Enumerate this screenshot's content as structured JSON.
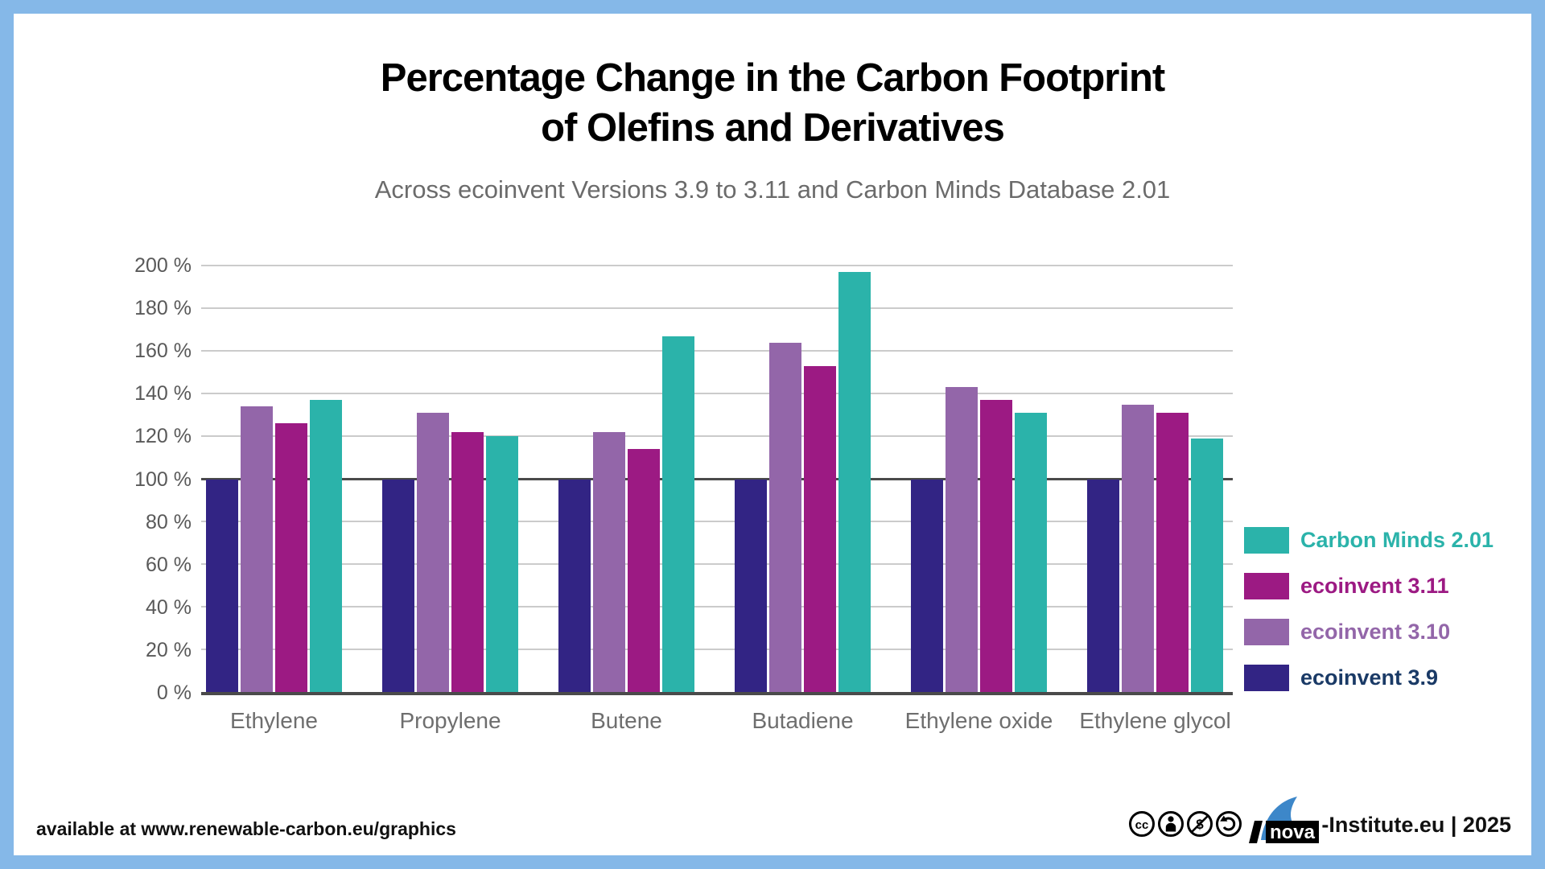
{
  "frame": {
    "border_color": "#85b8e8",
    "panel_background": "#ffffff"
  },
  "header": {
    "title_line1": "Percentage Change in the Carbon Footprint",
    "title_line2": "of Olefins and Derivatives",
    "subtitle": "Across ecoinvent Versions 3.9 to 3.11 and Carbon Minds Database 2.01"
  },
  "chart_data": {
    "type": "bar",
    "categories": [
      "Ethylene",
      "Propylene",
      "Butene",
      "Butadiene",
      "Ethylene oxide",
      "Ethylene glycol"
    ],
    "series": [
      {
        "name": "ecoinvent 3.9",
        "color": "#322484",
        "values": [
          100,
          100,
          100,
          100,
          100,
          100
        ]
      },
      {
        "name": "ecoinvent 3.10",
        "color": "#9366a9",
        "values": [
          134,
          131,
          122,
          164,
          143,
          135
        ]
      },
      {
        "name": "ecoinvent 3.11",
        "color": "#9c1a83",
        "values": [
          126,
          122,
          114,
          153,
          137,
          131
        ]
      },
      {
        "name": "Carbon Minds 2.01",
        "color": "#2bb3aa",
        "values": [
          137,
          120,
          167,
          197,
          131,
          119
        ]
      }
    ],
    "ylim": [
      0,
      200
    ],
    "ytick_step": 20,
    "ytick_suffix": " %",
    "grid": true,
    "baseline_emphasis": 100,
    "legend_position": "right"
  },
  "legend": {
    "items": [
      {
        "label": "Carbon Minds 2.01",
        "color": "#2bb3aa",
        "label_color": "#2bb3aa"
      },
      {
        "label": "ecoinvent 3.11",
        "color": "#9c1a83",
        "label_color": "#9c1a83"
      },
      {
        "label": "ecoinvent 3.10",
        "color": "#9366a9",
        "label_color": "#9366a9"
      },
      {
        "label": "ecoinvent 3.9",
        "color": "#322484",
        "label_color": "#1a3a66"
      }
    ]
  },
  "footer": {
    "left_text": "available at www.renewable-carbon.eu/graphics",
    "nova_label": "nova",
    "right_text": "-Institute.eu | 2025",
    "cc_icon_names": [
      "cc-icon",
      "cc-by-icon",
      "cc-nc-icon",
      "cc-sa-icon"
    ],
    "nova_swoosh_color": "#3d87c9"
  }
}
